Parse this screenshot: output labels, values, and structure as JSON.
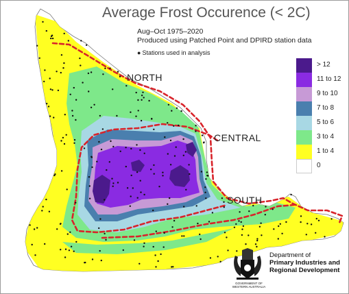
{
  "title": "Average Frost Occurence (< 2C)",
  "subtitle_period": "Aug–Oct 1975–2020",
  "subtitle_source": "Produced using Patched Point and DPIRD station data",
  "stations_note": "Stations used in analysis",
  "regions": {
    "north": "NORTH",
    "central": "CENTRAL",
    "south": "SOUTH"
  },
  "legend": [
    {
      "label": "> 12",
      "color": "#4b1a8c"
    },
    {
      "label": "11 to 12",
      "color": "#8a2be2"
    },
    {
      "label": "9 to 10",
      "color": "#c79ad6"
    },
    {
      "label": "7 to 8",
      "color": "#4a7fae"
    },
    {
      "label": "5 to 6",
      "color": "#a8d8e4"
    },
    {
      "label": "3 to 4",
      "color": "#7ee88a"
    },
    {
      "label": "1 to 4",
      "color": "#ffff22"
    },
    {
      "label": "0",
      "color": "#ffffff"
    }
  ],
  "boundary_color": "#d8232a",
  "logo": {
    "department_line1": "Department of",
    "department_line2": "Primary Industries and",
    "department_line3": "Regional Development",
    "government_line": "GOVERNMENT OF WESTERN AUSTRALIA",
    "icon": "wa-crest-icon"
  }
}
